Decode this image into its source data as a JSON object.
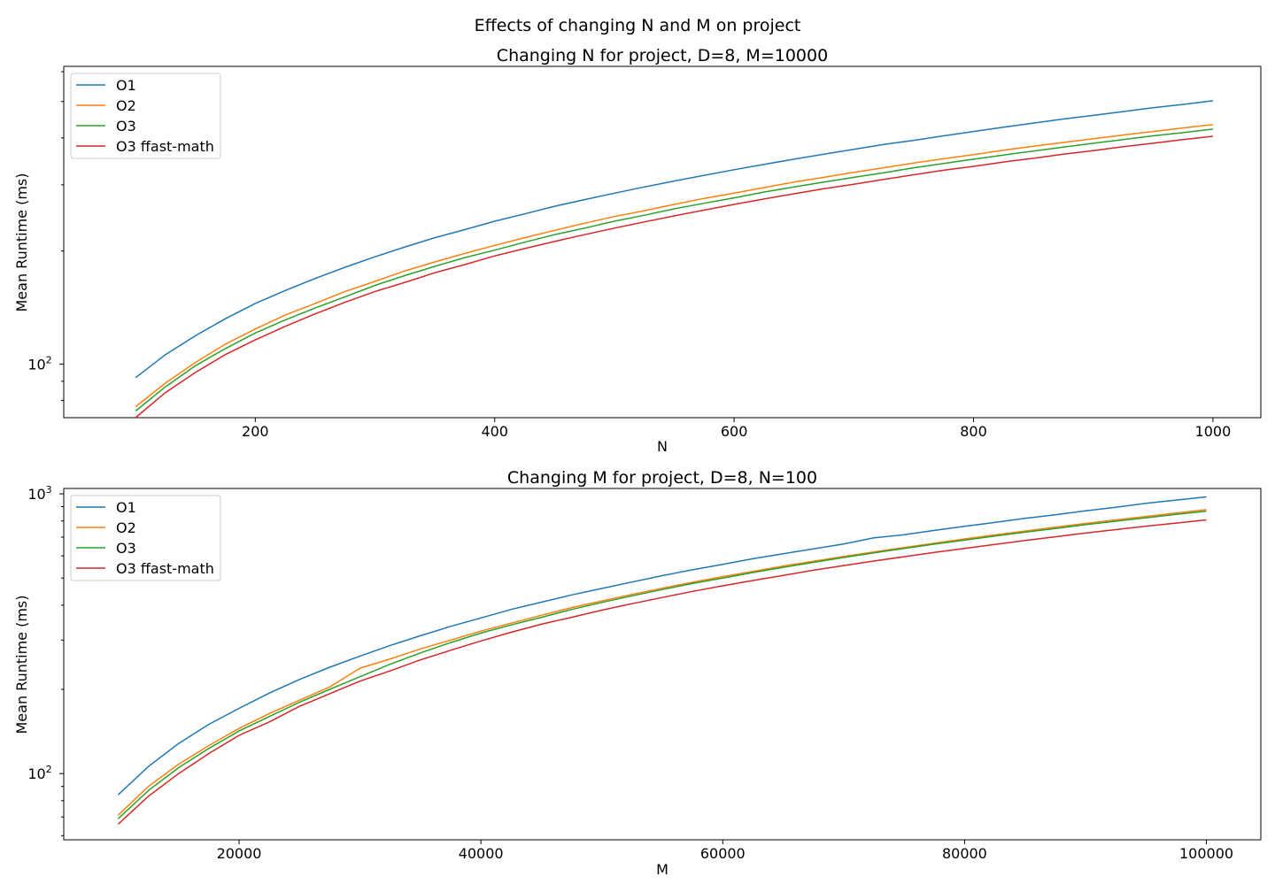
{
  "figure": {
    "suptitle": "Effects of changing N and M on project"
  },
  "colors": {
    "O1": "#1f77b4",
    "O2": "#ff7f0e",
    "O3": "#2ca02c",
    "O3 ffast-math": "#d62728",
    "axis": "#000000",
    "background": "#ffffff"
  },
  "chart_data": [
    {
      "type": "line",
      "title": "Changing N for project, D=8, M=10000",
      "xlabel": "N",
      "ylabel": "Mean Runtime (ms)",
      "yscale": "log",
      "xlim": [
        40,
        1040
      ],
      "ylim": [
        72,
        620
      ],
      "xticks": [
        200,
        400,
        600,
        800,
        1000
      ],
      "yticks": [
        {
          "value": 100,
          "label": "10",
          "exp": "2"
        }
      ],
      "grid": false,
      "legend_loc": "upper left",
      "x": [
        100,
        125,
        150,
        175,
        200,
        225,
        250,
        275,
        300,
        325,
        350,
        375,
        400,
        425,
        450,
        475,
        500,
        525,
        550,
        575,
        600,
        625,
        650,
        675,
        700,
        725,
        750,
        775,
        800,
        825,
        850,
        875,
        900,
        925,
        950,
        975,
        1000
      ],
      "series": [
        {
          "name": "O1",
          "color": "#1f77b4",
          "values": [
            92,
            106,
            119,
            132,
            145,
            157,
            169,
            181,
            193,
            205,
            217,
            228,
            240,
            251,
            263,
            274,
            285,
            296,
            307,
            318,
            329,
            340,
            351,
            362,
            373,
            384,
            394,
            405,
            416,
            427,
            438,
            449,
            459,
            470,
            481,
            491,
            502
          ]
        },
        {
          "name": "O2",
          "color": "#ff7f0e",
          "values": [
            77,
            89,
            101,
            113,
            124,
            135,
            145,
            156,
            166,
            177,
            187,
            197,
            207,
            217,
            227,
            237,
            247,
            256,
            266,
            276,
            285,
            295,
            305,
            314,
            324,
            333,
            343,
            352,
            361,
            371,
            380,
            389,
            398,
            407,
            416,
            425,
            434
          ]
        },
        {
          "name": "O3",
          "color": "#2ca02c",
          "values": [
            75,
            87,
            99,
            110,
            121,
            131,
            141,
            151,
            162,
            172,
            182,
            192,
            201,
            211,
            221,
            230,
            240,
            249,
            259,
            268,
            277,
            287,
            296,
            305,
            314,
            323,
            333,
            342,
            351,
            360,
            369,
            378,
            387,
            396,
            405,
            413,
            422
          ]
        },
        {
          "name": "O3 ffast-math",
          "color": "#d62728",
          "values": [
            72,
            84,
            95,
            106,
            116,
            126,
            136,
            146,
            156,
            165,
            175,
            184,
            194,
            203,
            212,
            221,
            230,
            239,
            248,
            257,
            266,
            275,
            284,
            293,
            301,
            310,
            319,
            328,
            336,
            345,
            353,
            362,
            370,
            379,
            387,
            396,
            404
          ]
        }
      ]
    },
    {
      "type": "line",
      "title": "Changing M for project, D=8, N=100",
      "xlabel": "M",
      "ylabel": "Mean Runtime (ms)",
      "yscale": "log",
      "xlim": [
        5500,
        104500
      ],
      "ylim": [
        58,
        1045
      ],
      "xticks": [
        20000,
        40000,
        60000,
        80000,
        100000
      ],
      "yticks": [
        {
          "value": 100,
          "label": "10",
          "exp": "2"
        },
        {
          "value": 1000,
          "label": "10",
          "exp": "3"
        }
      ],
      "grid": false,
      "legend_loc": "upper left",
      "x": [
        10000,
        12500,
        15000,
        17500,
        20000,
        22500,
        25000,
        27500,
        30000,
        32500,
        35000,
        37500,
        40000,
        42500,
        45000,
        47500,
        50000,
        52500,
        55000,
        57500,
        60000,
        62500,
        65000,
        67500,
        70000,
        72500,
        75000,
        77500,
        80000,
        82500,
        85000,
        87500,
        90000,
        92500,
        95000,
        97500,
        100000
      ],
      "series": [
        {
          "name": "O1",
          "color": "#1f77b4",
          "values": [
            84,
            106,
            128,
            150,
            171,
            194,
            217,
            240,
            263,
            287,
            311,
            336,
            360,
            386,
            410,
            435,
            459,
            484,
            510,
            535,
            560,
            586,
            611,
            636,
            662,
            696,
            714,
            740,
            765,
            790,
            817,
            842,
            870,
            895,
            925,
            950,
            975
          ]
        },
        {
          "name": "O2",
          "color": "#ff7f0e",
          "values": [
            71,
            90,
            108,
            126,
            145,
            164,
            183,
            204,
            238,
            257,
            279,
            300,
            323,
            345,
            368,
            392,
            414,
            437,
            460,
            483,
            506,
            528,
            552,
            574,
            597,
            620,
            643,
            666,
            690,
            713,
            736,
            760,
            784,
            807,
            830,
            854,
            878
          ]
        },
        {
          "name": "O3",
          "color": "#2ca02c",
          "values": [
            69,
            87,
            105,
            123,
            142,
            160,
            180,
            200,
            222,
            246,
            270,
            294,
            318,
            340,
            362,
            386,
            409,
            432,
            455,
            478,
            500,
            523,
            546,
            569,
            592,
            615,
            638,
            661,
            683,
            706,
            729,
            752,
            776,
            798,
            821,
            844,
            867
          ]
        },
        {
          "name": "O3 ffast-math",
          "color": "#d62728",
          "values": [
            66,
            83,
            100,
            118,
            137,
            153,
            174,
            193,
            214,
            233,
            255,
            276,
            298,
            320,
            342,
            362,
            384,
            405,
            426,
            448,
            469,
            490,
            511,
            533,
            554,
            575,
            596,
            617,
            638,
            659,
            681,
            702,
            724,
            745,
            766,
            786,
            807
          ]
        }
      ]
    }
  ]
}
